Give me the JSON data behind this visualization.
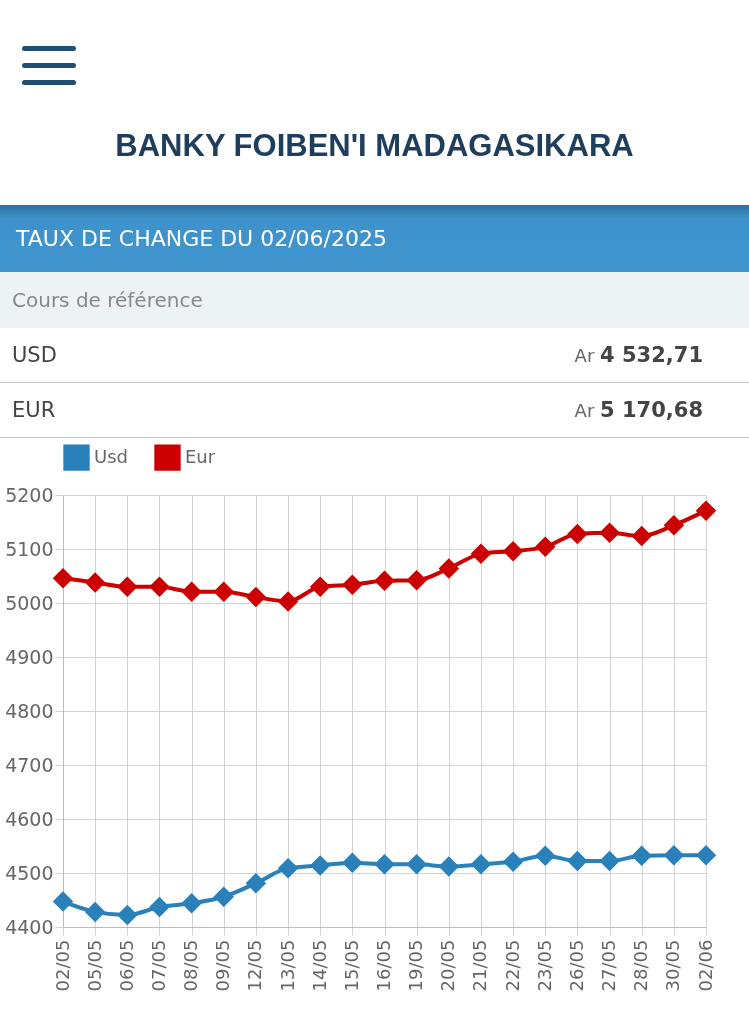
{
  "chart_data": {
    "type": "line",
    "title": "TAUX DE CHANGE DU 02/06/2025",
    "subtitle": "Cours de référence",
    "annotations": [
      "BANKY FOIBEN'I MADAGASIKARA",
      "USD",
      "Ar 4 532,71",
      "EUR",
      "Ar 5 170,68"
    ],
    "categories": [
      "02/05",
      "05/05",
      "06/05",
      "07/05",
      "08/05",
      "09/05",
      "12/05",
      "13/05",
      "14/05",
      "15/05",
      "16/05",
      "19/05",
      "20/05",
      "21/05",
      "22/05",
      "23/05",
      "26/05",
      "27/05",
      "28/05",
      "30/05",
      "02/06"
    ],
    "series": [
      {
        "name": "Usd",
        "color": "#2a80b9",
        "values": [
          4447,
          4428,
          4422,
          4437,
          4444,
          4456,
          4481,
          4509,
          4514,
          4519,
          4516,
          4516,
          4512,
          4516,
          4521,
          4532,
          4522,
          4522,
          4532,
          4533,
          4533
        ]
      },
      {
        "name": "Eur",
        "color": "#cc0000",
        "values": [
          5046,
          5038,
          5030,
          5030,
          5021,
          5021,
          5011,
          5003,
          5030,
          5034,
          5041,
          5042,
          5064,
          5091,
          5096,
          5104,
          5128,
          5130,
          5124,
          5144,
          5171
        ]
      }
    ],
    "ylim": [
      4400,
      5200
    ],
    "yticks": [
      4400,
      4500,
      4600,
      4700,
      4800,
      4900,
      5000,
      5100,
      5200
    ],
    "grid": true,
    "legend": "top",
    "marker": "diamond",
    "line_style": "solid"
  }
}
